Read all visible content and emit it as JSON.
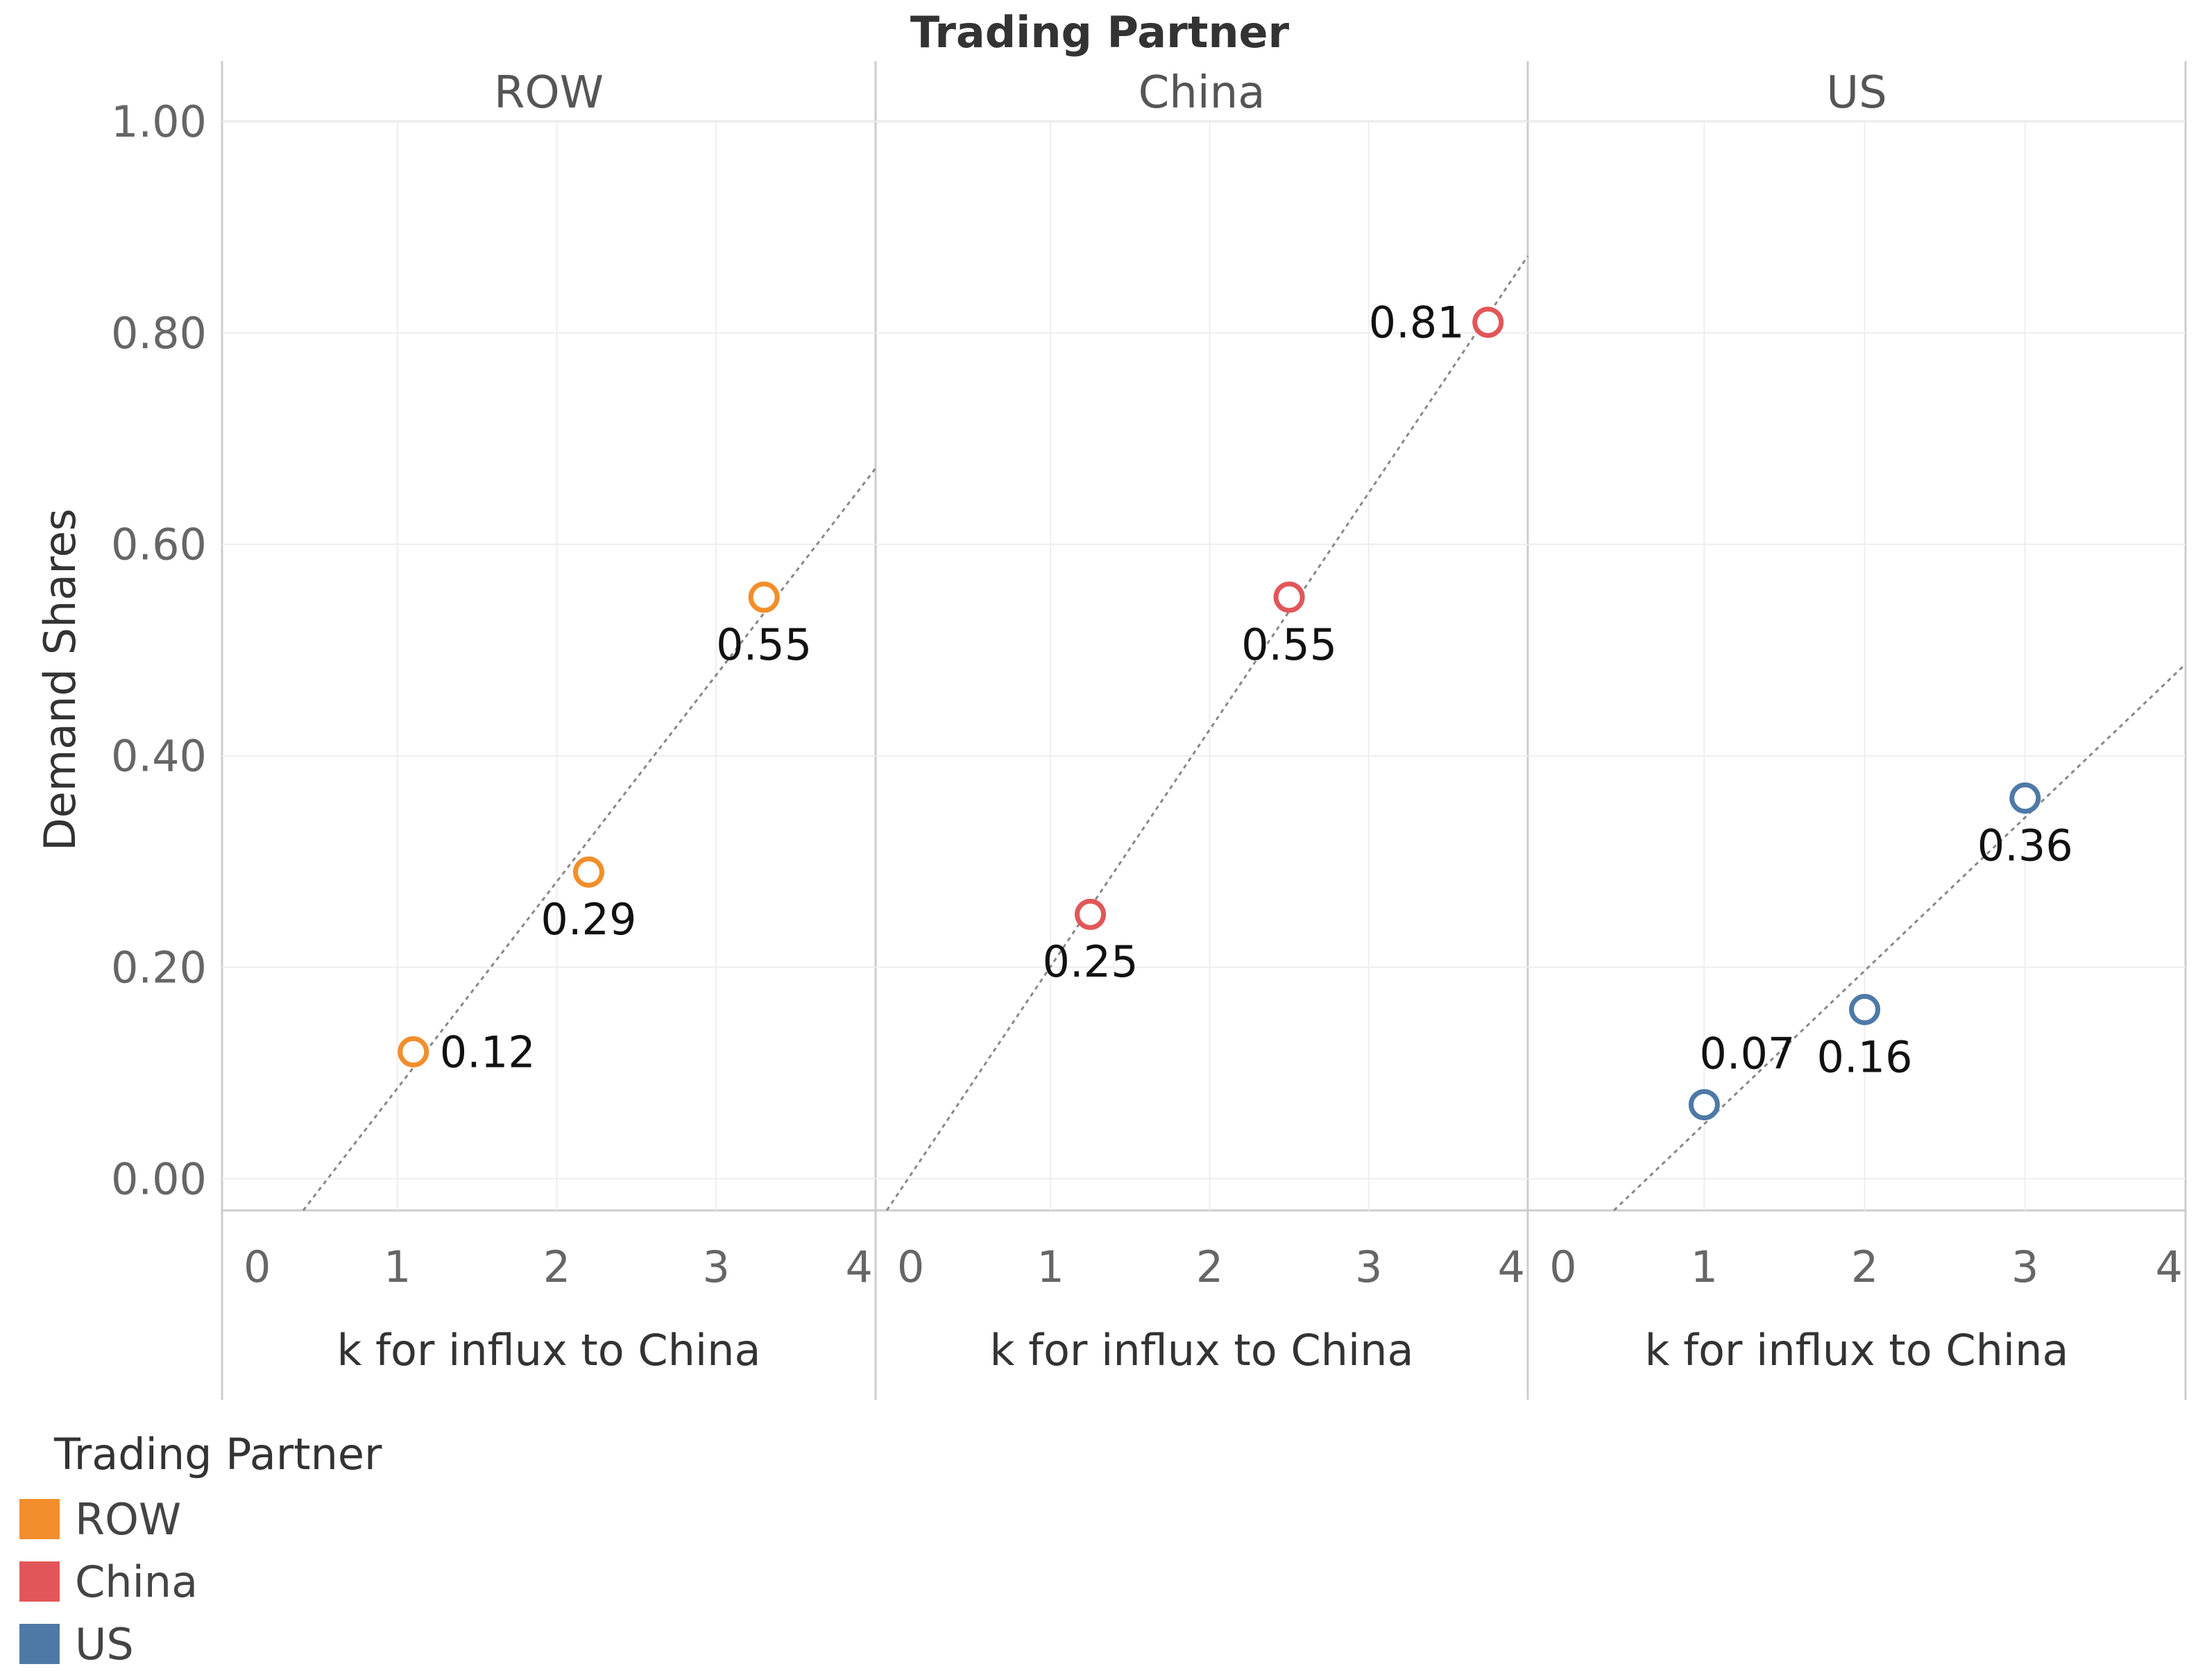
{
  "chart_data": {
    "type": "scatter",
    "title": "Trading Partner",
    "ylabel": "Demand Shares",
    "xlabel": "k for influx to China",
    "ylim": [
      -0.03,
      1.0
    ],
    "xlim": [
      -0.1,
      4.0
    ],
    "yticks": [
      "0.00",
      "0.20",
      "0.40",
      "0.60",
      "0.80",
      "1.00"
    ],
    "ytick_values": [
      0.0,
      0.2,
      0.4,
      0.6,
      0.8,
      1.0
    ],
    "xticks": [
      "0",
      "1",
      "2",
      "3",
      "4"
    ],
    "xtick_values": [
      0,
      1,
      2,
      3,
      4
    ],
    "grid": true,
    "trend_lines": "linear, dotted",
    "legend_position": "bottom-left",
    "panels": [
      {
        "name": "ROW",
        "color": "#f28e2b",
        "x": [
          1.1,
          2.2,
          3.3
        ],
        "y": [
          0.12,
          0.29,
          0.55
        ],
        "labels": [
          "0.12",
          "0.29",
          "0.55"
        ],
        "label_pos": [
          "right",
          "below",
          "below"
        ]
      },
      {
        "name": "China",
        "color": "#e15759",
        "x": [
          1.25,
          2.5,
          3.75
        ],
        "y": [
          0.25,
          0.55,
          0.81
        ],
        "labels": [
          "0.25",
          "0.55",
          "0.81"
        ],
        "label_pos": [
          "below",
          "below",
          "left"
        ]
      },
      {
        "name": "US",
        "color": "#4e79a7",
        "x": [
          1.0,
          2.0,
          3.0
        ],
        "y": [
          0.07,
          0.16,
          0.36
        ],
        "labels": [
          "0.07",
          "0.16",
          "0.36"
        ],
        "label_pos": [
          "above",
          "below",
          "below"
        ]
      }
    ]
  },
  "legend": {
    "title": "Trading Partner",
    "items": [
      {
        "label": "ROW",
        "color": "#f28e2b"
      },
      {
        "label": "China",
        "color": "#e15759"
      },
      {
        "label": "US",
        "color": "#4e79a7"
      }
    ]
  }
}
